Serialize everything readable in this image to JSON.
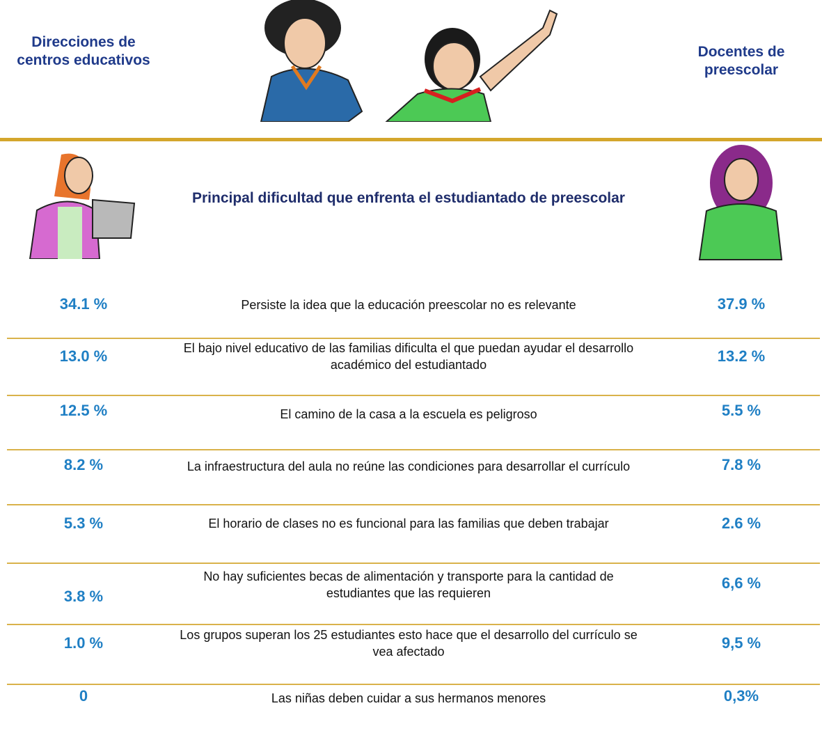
{
  "header": {
    "left_label": "Direcciones de centros educativos",
    "right_label": "Docentes de preescolar"
  },
  "title": "Principal dificultad que enfrenta el estudiantado de preescolar",
  "rows": [
    {
      "left": "34.1 %",
      "description": "Persiste la idea que la educación preescolar no es relevante",
      "right": "37.9 %"
    },
    {
      "left": "13.0 %",
      "description": "El bajo nivel educativo de las familias dificulta el que puedan ayudar el desarrollo académico del estudiantado",
      "right": "13.2 %"
    },
    {
      "left": "12.5 %",
      "description": "El camino de la casa a la escuela es peligroso",
      "right": "5.5 %"
    },
    {
      "left": "8.2 %",
      "description": "La infraestructura del aula no reúne las condiciones para desarrollar el currículo",
      "right": "7.8 %"
    },
    {
      "left": "5.3 %",
      "description": "El horario de clases no es funcional para las familias que deben trabajar",
      "right": "2.6 %"
    },
    {
      "left": "3.8 %",
      "description": "No hay suficientes becas de alimentación y transporte para la cantidad de estudiantes que las requieren",
      "right": "6,6 %"
    },
    {
      "left": "1.0 %",
      "description": "Los grupos superan los 25 estudiantes esto hace que el desarrollo del currículo se vea afectado",
      "right": "9,5 %"
    },
    {
      "left": "0",
      "description": "Las niñas deben cuidar a sus hermanos menores",
      "right": "0,3%"
    }
  ]
}
